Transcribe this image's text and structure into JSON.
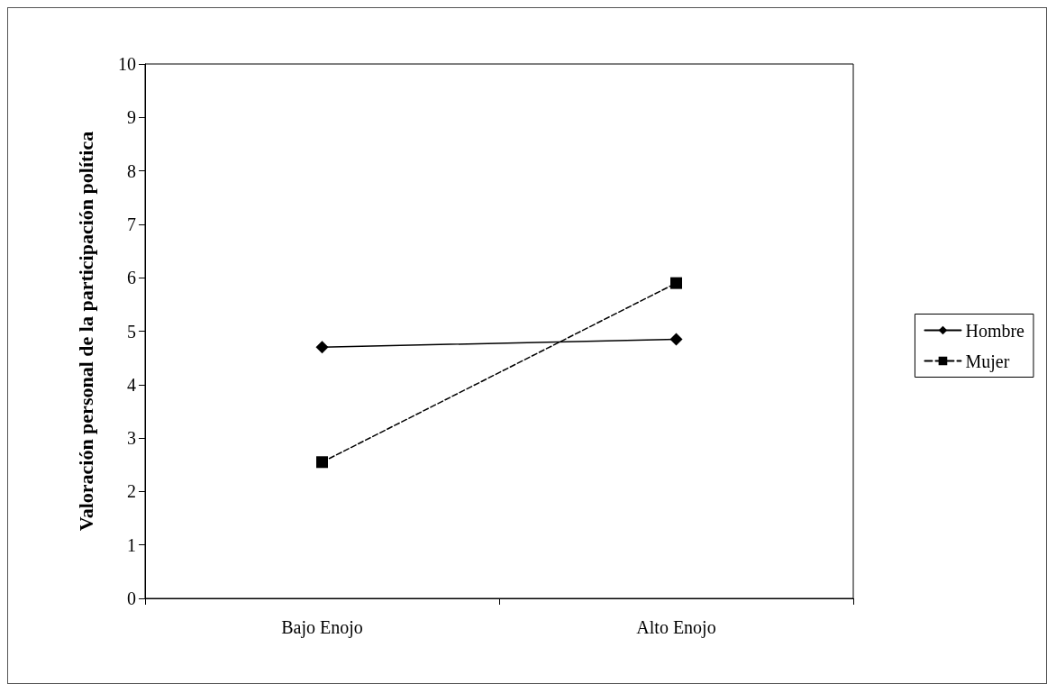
{
  "chart_data": {
    "type": "line",
    "ylabel": "Valoración personal de la participación política",
    "categories": [
      "Bajo Enojo",
      "Alto Enojo"
    ],
    "series": [
      {
        "name": "Hombre",
        "color": "#000000",
        "values": [
          4.7,
          4.85
        ],
        "marker": "diamond",
        "line_style": "solid"
      },
      {
        "name": "Mujer",
        "color": "#000000",
        "values": [
          2.55,
          5.9
        ],
        "marker": "square",
        "line_style": "dashed"
      }
    ],
    "ylim": [
      0,
      10
    ],
    "yticks": [
      0,
      1,
      2,
      3,
      4,
      5,
      6,
      7,
      8,
      9,
      10
    ],
    "grid": false,
    "legend": "right"
  }
}
